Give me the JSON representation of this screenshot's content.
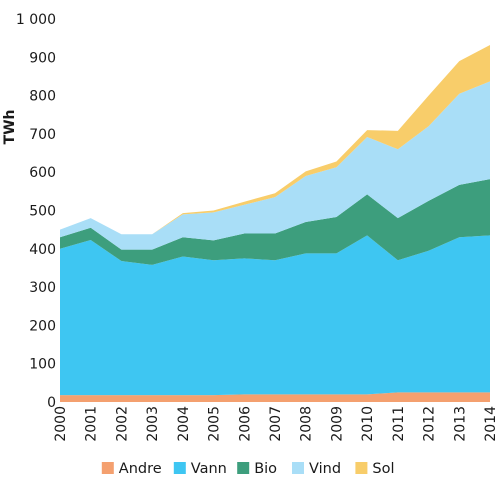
{
  "chart_data": {
    "type": "area",
    "stacked": true,
    "title": "",
    "xlabel": "",
    "ylabel": "TWh",
    "x": [
      2000,
      2001,
      2002,
      2003,
      2004,
      2005,
      2006,
      2007,
      2008,
      2009,
      2010,
      2011,
      2012,
      2013,
      2014
    ],
    "x_tick_labels": [
      "2000",
      "2001",
      "2002",
      "2003",
      "2004",
      "2005",
      "2006",
      "2007",
      "2008",
      "2009",
      "2010",
      "2011",
      "2012",
      "2013",
      "2014"
    ],
    "ylim": [
      0,
      1000
    ],
    "y_ticks": [
      0,
      100,
      200,
      300,
      400,
      500,
      600,
      700,
      800,
      900,
      1000
    ],
    "y_tick_labels": [
      "0",
      "100",
      "200",
      "300",
      "400",
      "500",
      "600",
      "700",
      "800",
      "900",
      "1 000"
    ],
    "grid": false,
    "legend_position": "bottom",
    "series": [
      {
        "name": "Andre",
        "color": "#f4a06f",
        "values": [
          18,
          18,
          18,
          18,
          18,
          18,
          20,
          20,
          20,
          20,
          20,
          25,
          25,
          25,
          25
        ]
      },
      {
        "name": "Vann",
        "color": "#3ec6f2",
        "values": [
          382,
          405,
          350,
          340,
          362,
          352,
          355,
          350,
          368,
          368,
          415,
          345,
          370,
          405,
          410
        ]
      },
      {
        "name": "Bio",
        "color": "#3d9e7d",
        "values": [
          30,
          32,
          30,
          40,
          50,
          52,
          65,
          70,
          82,
          95,
          107,
          110,
          130,
          137,
          147
        ]
      },
      {
        "name": "Vind",
        "color": "#a9def7",
        "values": [
          20,
          25,
          40,
          40,
          60,
          73,
          75,
          95,
          120,
          130,
          150,
          180,
          195,
          238,
          255
        ]
      },
      {
        "name": "Sol",
        "color": "#f8cd6a",
        "values": [
          0,
          0,
          0,
          0,
          3,
          5,
          8,
          10,
          12,
          15,
          18,
          48,
          80,
          85,
          95
        ]
      }
    ]
  }
}
